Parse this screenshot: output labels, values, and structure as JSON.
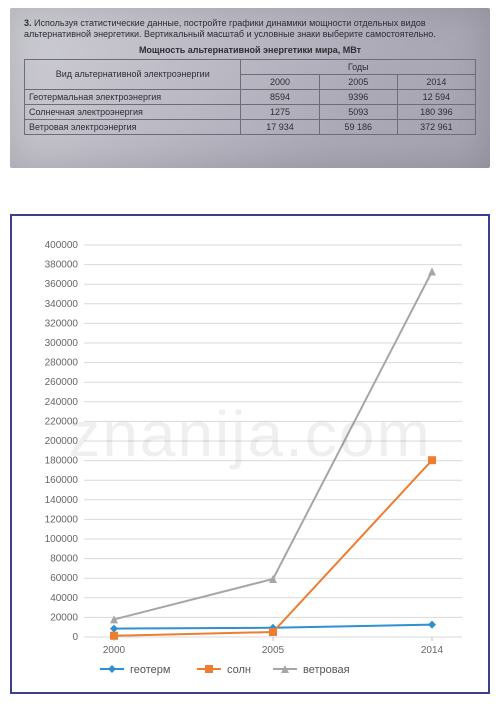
{
  "photo": {
    "task_number": "3.",
    "task_text": "Используя статистические данные, постройте графики динамики мощности отдельных видов альтернативной энергетики. Вертикальный масштаб и условные знаки выберите самостоятельно.",
    "caption": "Мощность альтернативной энергетики мира, МВт",
    "row_header_title": "Вид альтернативной электроэнергии",
    "years_header": "Годы",
    "years": [
      "2000",
      "2005",
      "2014"
    ],
    "rows": [
      {
        "label": "Геотермальная электроэнергия",
        "vals": [
          "8594",
          "9396",
          "12 594"
        ]
      },
      {
        "label": "Солнечная электроэнергия",
        "vals": [
          "1275",
          "5093",
          "180 396"
        ]
      },
      {
        "label": "Ветровая электроэнергия",
        "vals": [
          "17 934",
          "59 186",
          "372 961"
        ]
      }
    ]
  },
  "chart": {
    "type": "line",
    "x_categories": [
      "2000",
      "2005",
      "2014"
    ],
    "y": {
      "min": 0,
      "max": 400000,
      "step": 20000
    },
    "series": [
      {
        "key": "геотерм",
        "color": "#2e8fd1",
        "values": [
          8594,
          9396,
          12594
        ],
        "marker": "diamond"
      },
      {
        "key": "солн",
        "color": "#ed7d31",
        "values": [
          1275,
          5093,
          180396
        ],
        "marker": "square"
      },
      {
        "key": "ветровая",
        "color": "#a6a6a6",
        "values": [
          17934,
          59186,
          372961
        ],
        "marker": "triangle"
      }
    ],
    "grid_color": "#d9d9d9",
    "border_color": "#3c3e8f",
    "background": "#ffffff",
    "label_fontsize": 10
  },
  "watermark": "znanija.com"
}
